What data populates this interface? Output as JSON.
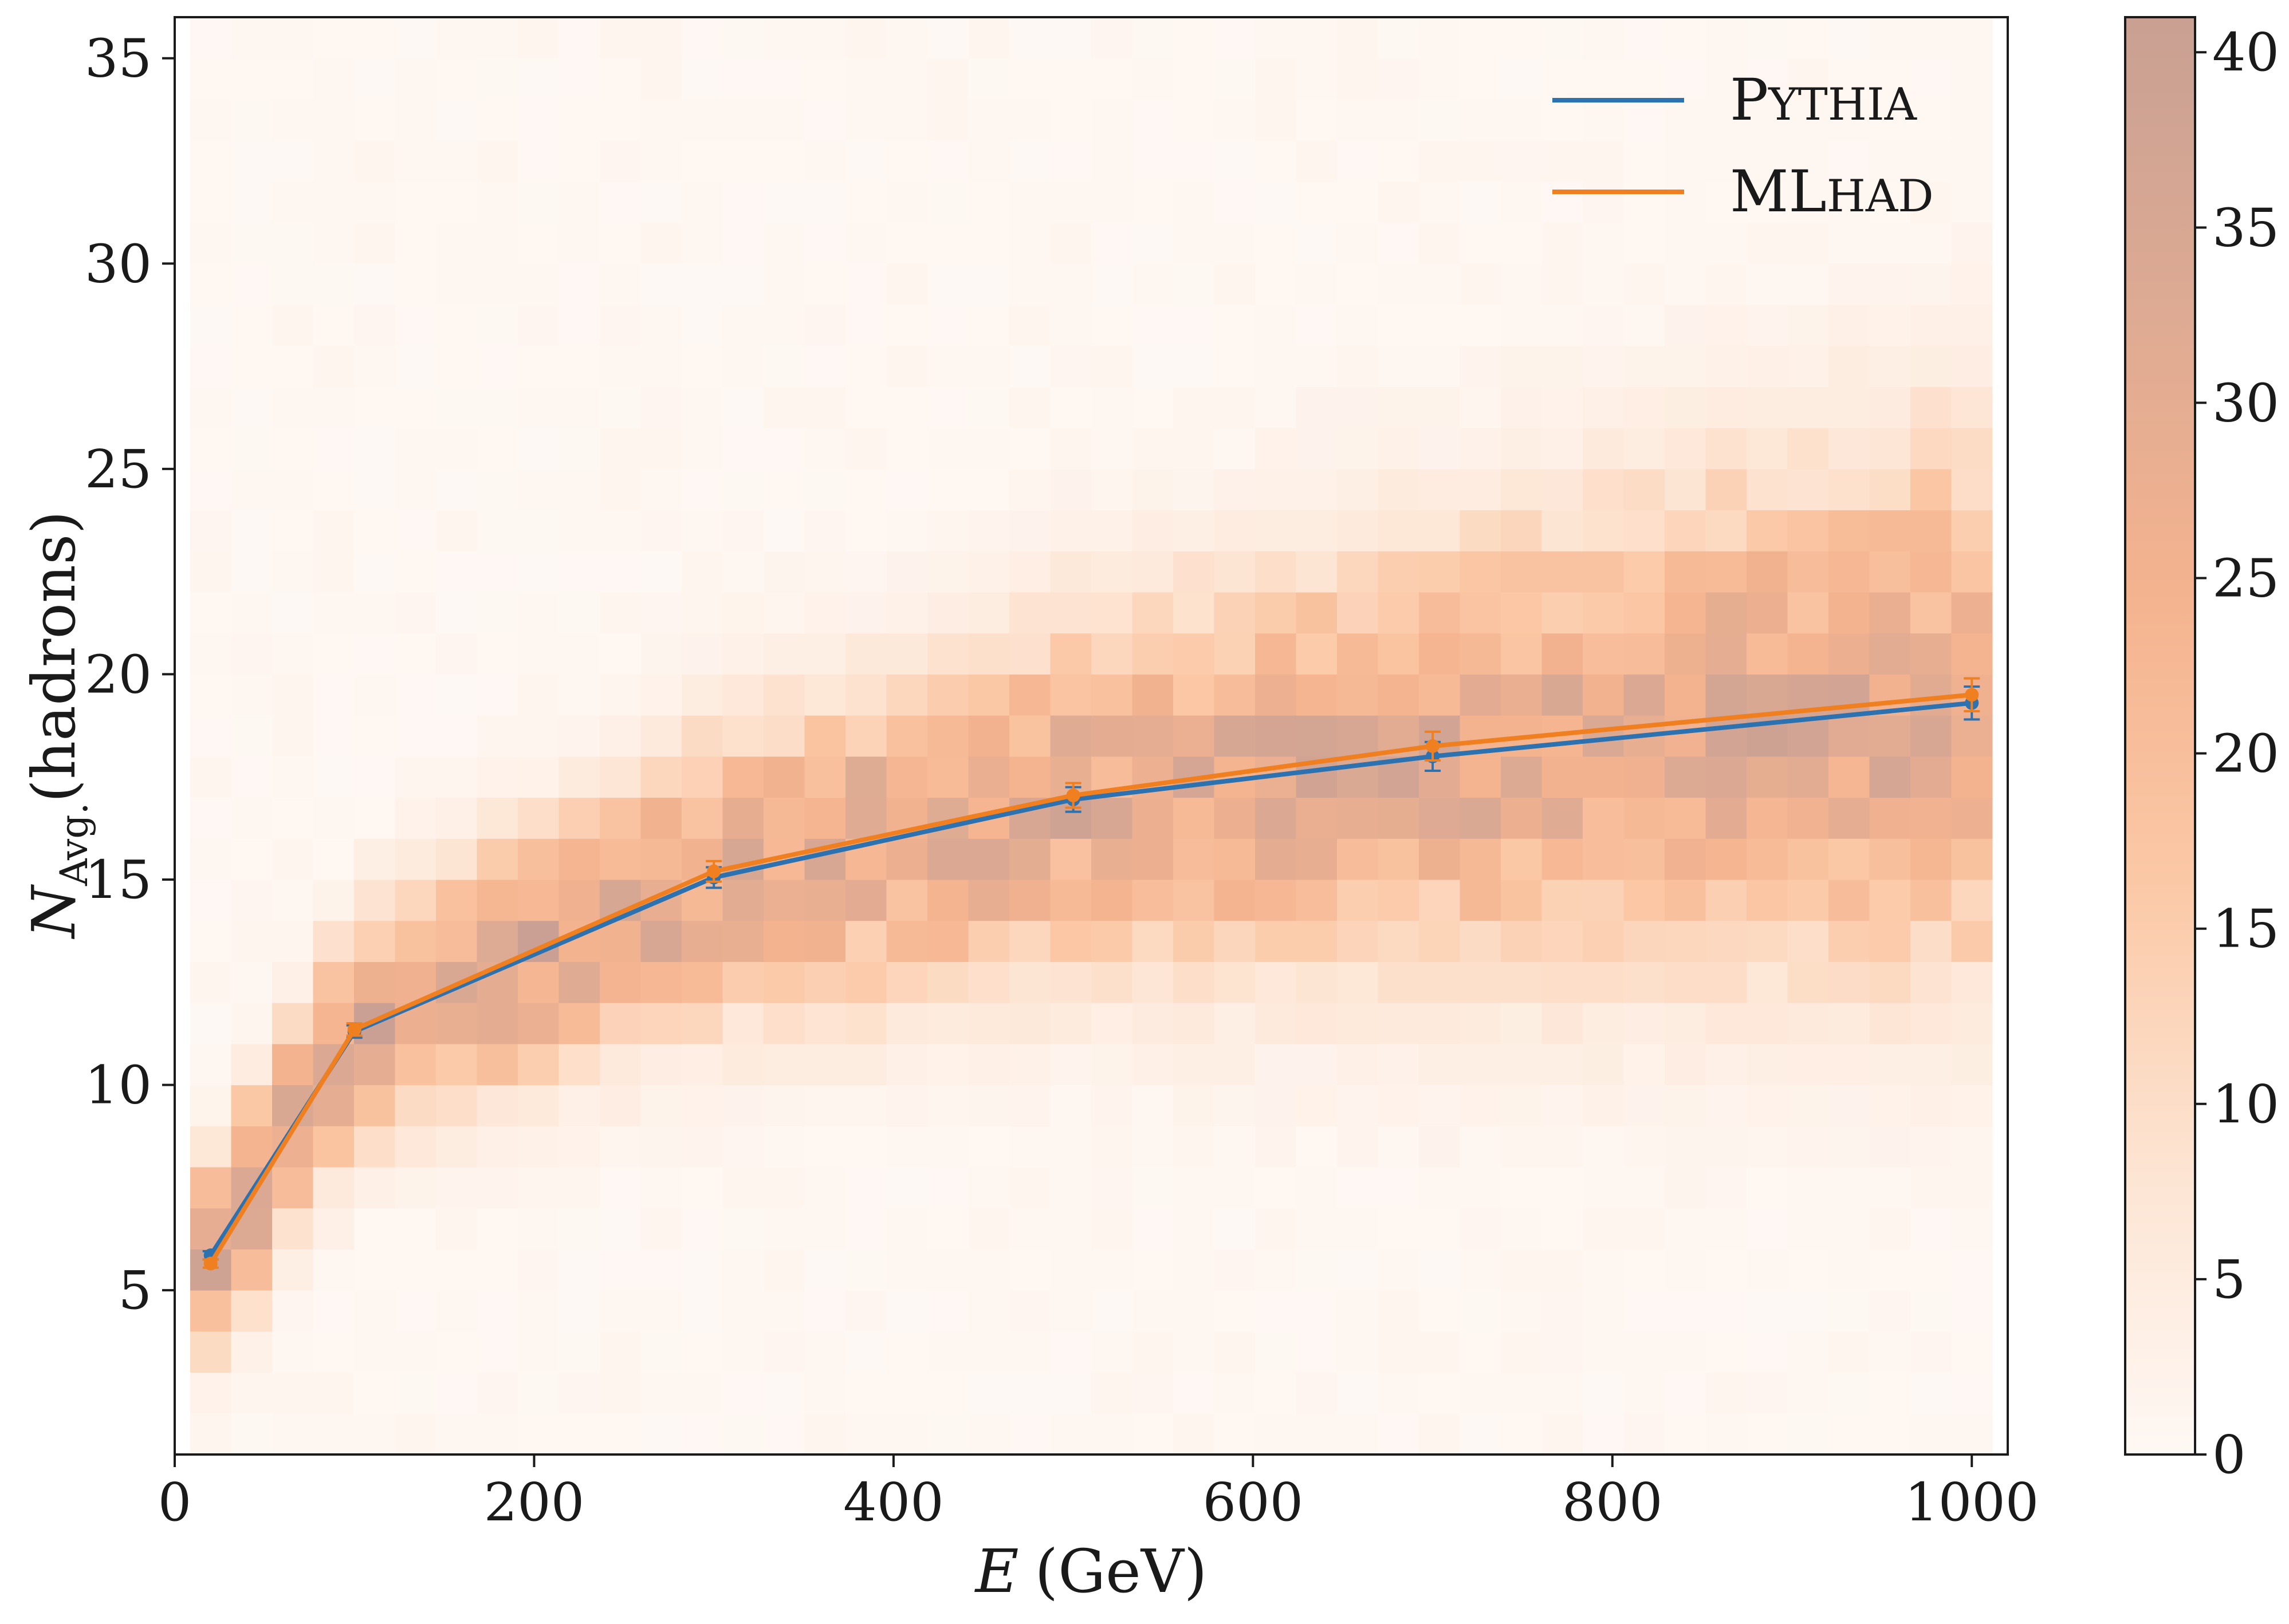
{
  "chart_data": {
    "type": "heatmap",
    "x_label": "E (GeV)",
    "y_label": "N_Avg.(hadrons)",
    "x_axis": {
      "range": [
        0,
        1020
      ],
      "ticks": [
        0,
        200,
        400,
        600,
        800,
        1000
      ],
      "tick_labels": [
        "0",
        "200",
        "400",
        "600",
        "800",
        "1000"
      ]
    },
    "y_axis": {
      "range": [
        1,
        36
      ],
      "ticks": [
        5,
        10,
        15,
        20,
        25,
        30,
        35
      ],
      "tick_labels": [
        "5",
        "10",
        "15",
        "20",
        "25",
        "30",
        "35"
      ]
    },
    "colorbar": {
      "range": [
        0,
        41
      ],
      "ticks": [
        0,
        5,
        10,
        15,
        20,
        25,
        30,
        35,
        40
      ],
      "tick_labels": [
        "0",
        "5",
        "10",
        "15",
        "20",
        "25",
        "30",
        "35",
        "40"
      ],
      "colors": [
        "#fef8f4",
        "#fde4d2",
        "#fbc8a6",
        "#f4b38f",
        "#ddaa93",
        "#c9a093"
      ]
    },
    "heatmap": {
      "x_range": [
        20,
        1000
      ],
      "y_range": [
        1,
        36
      ],
      "x_bins": 44,
      "y_bins": 35,
      "description_points": [
        [
          20,
          5.8
        ],
        [
          100,
          11.3
        ],
        [
          300,
          15.1
        ],
        [
          500,
          17.0
        ],
        [
          700,
          18.0
        ],
        [
          1000,
          19.3
        ]
      ]
    },
    "series": [
      {
        "name": "Pythia",
        "color": "#2c72b0",
        "x": [
          20,
          100,
          300,
          500,
          700,
          1000
        ],
        "y": [
          5.85,
          11.3,
          15.05,
          16.95,
          18.0,
          19.3
        ],
        "yerr": [
          0.1,
          0.15,
          0.25,
          0.3,
          0.35,
          0.4
        ]
      },
      {
        "name": "MLhad",
        "color": "#f07f1f",
        "x": [
          20,
          100,
          300,
          500,
          700,
          1000
        ],
        "y": [
          5.65,
          11.35,
          15.2,
          17.05,
          18.25,
          19.5
        ],
        "yerr": [
          0.1,
          0.15,
          0.25,
          0.3,
          0.35,
          0.4
        ]
      }
    ],
    "legend": {
      "position": "top-right",
      "entries": [
        {
          "label_main": "P",
          "label_small": "YTHIA",
          "series": 0
        },
        {
          "label_main": "ML",
          "label_small": "HAD",
          "series": 1
        }
      ]
    }
  }
}
